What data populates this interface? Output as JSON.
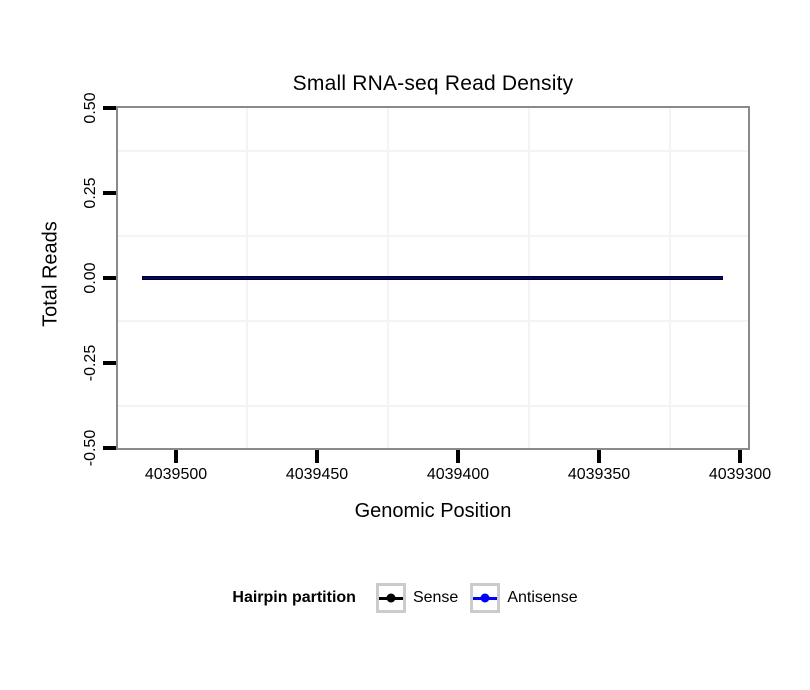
{
  "chart_data": {
    "type": "line",
    "title": "Small RNA-seq Read Density",
    "xlabel": "Genomic Position",
    "ylabel": "Total Reads",
    "x_ticks": [
      4039500,
      4039450,
      4039400,
      4039350,
      4039300
    ],
    "x_axis_direction": "decreasing-left-to-right",
    "xlim": [
      4039521,
      4039297
    ],
    "y_ticks": [
      "0.50",
      "0.25",
      "0.00",
      "-0.25",
      "-0.50"
    ],
    "y_tick_values": [
      0.5,
      0.25,
      0,
      -0.25,
      -0.5
    ],
    "ylim": [
      -0.5,
      0.5
    ],
    "grid": {
      "minor_color": "#f4f4f4",
      "major_color": "#ffffff"
    },
    "panel_border_color": "#8a8a8a",
    "legend_key_border_color": "#cbcbcb",
    "series": [
      {
        "name": "Sense",
        "color": "#000000",
        "y_constant": 0,
        "x_start": 4039512,
        "x_end": 4039306
      },
      {
        "name": "Antisense",
        "color": "#0000FF",
        "y_constant": 0,
        "x_start": 4039512,
        "x_end": 4039306
      }
    ],
    "legend": {
      "title": "Hairpin partition",
      "position": "bottom",
      "entries": [
        "Sense",
        "Antisense"
      ]
    }
  }
}
